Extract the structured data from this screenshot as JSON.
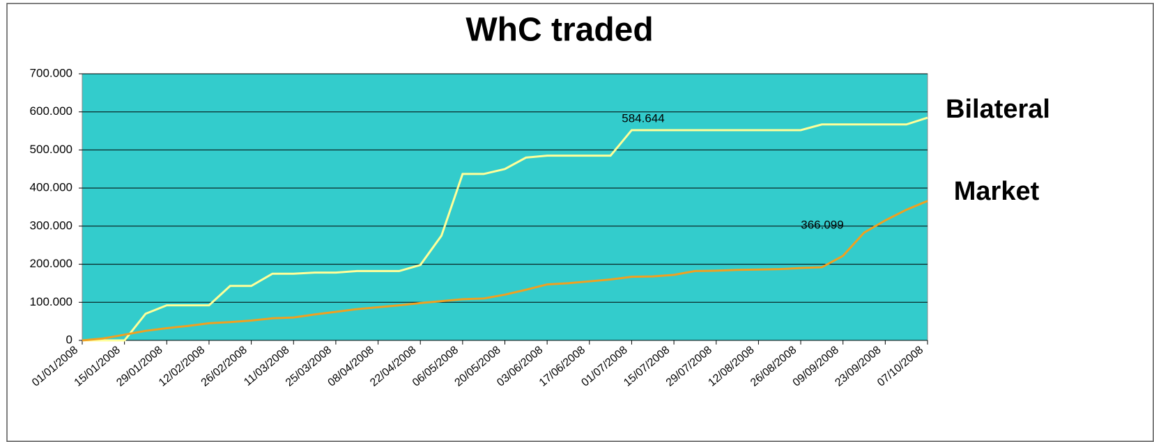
{
  "chart_data": {
    "type": "line",
    "title": "WhC traded",
    "categories": [
      "01/01/2008",
      null,
      "15/01/2008",
      null,
      "29/01/2008",
      null,
      "12/02/2008",
      null,
      "26/02/2008",
      null,
      "11/03/2008",
      null,
      "25/03/2008",
      null,
      "08/04/2008",
      null,
      "22/04/2008",
      null,
      "06/05/2008",
      null,
      "20/05/2008",
      null,
      "03/06/2008",
      null,
      "17/06/2008",
      null,
      "01/07/2008",
      null,
      "15/07/2008",
      null,
      "29/07/2008",
      null,
      "12/08/2008",
      null,
      "26/08/2008",
      null,
      "09/09/2008",
      null,
      "23/09/2008",
      null,
      "07/10/2008"
    ],
    "series": [
      {
        "name": "Bilateral",
        "color": "#ffff99",
        "values": [
          0,
          0,
          0,
          70000,
          92000,
          92000,
          92000,
          143000,
          143000,
          175000,
          175000,
          178000,
          178000,
          182000,
          182000,
          182000,
          198000,
          275000,
          437000,
          437000,
          450000,
          480000,
          485000,
          485000,
          485000,
          485000,
          552000,
          552000,
          552000,
          552000,
          552000,
          552000,
          552000,
          552000,
          552000,
          567000,
          567000,
          567000,
          567000,
          567000,
          584644
        ]
      },
      {
        "name": "Market",
        "color": "#f0a020",
        "values": [
          0,
          5000,
          15000,
          25000,
          32000,
          38000,
          45000,
          48000,
          52000,
          58000,
          60000,
          68000,
          75000,
          82000,
          87000,
          92000,
          98000,
          103000,
          108000,
          110000,
          120000,
          133000,
          147000,
          150000,
          155000,
          160000,
          167000,
          168000,
          172000,
          182000,
          183000,
          185000,
          186000,
          187000,
          190000,
          192000,
          222000,
          283000,
          315000,
          343000,
          366099
        ]
      }
    ],
    "annotations": [
      "584.644",
      "366.099"
    ],
    "ylim": [
      0,
      700000
    ],
    "yticks": [
      0,
      {
        "value": 100000,
        "label": "100.000"
      },
      {
        "value": 200000,
        "label": "200.000"
      },
      {
        "value": 300000,
        "label": "300.000"
      },
      {
        "value": 400000,
        "label": "400.000"
      },
      {
        "value": 500000,
        "label": "500.000"
      },
      {
        "value": 600000,
        "label": "600.000"
      },
      {
        "value": 700000,
        "label": "700.000"
      }
    ],
    "grid": true,
    "plot_background": "#33cccc"
  }
}
